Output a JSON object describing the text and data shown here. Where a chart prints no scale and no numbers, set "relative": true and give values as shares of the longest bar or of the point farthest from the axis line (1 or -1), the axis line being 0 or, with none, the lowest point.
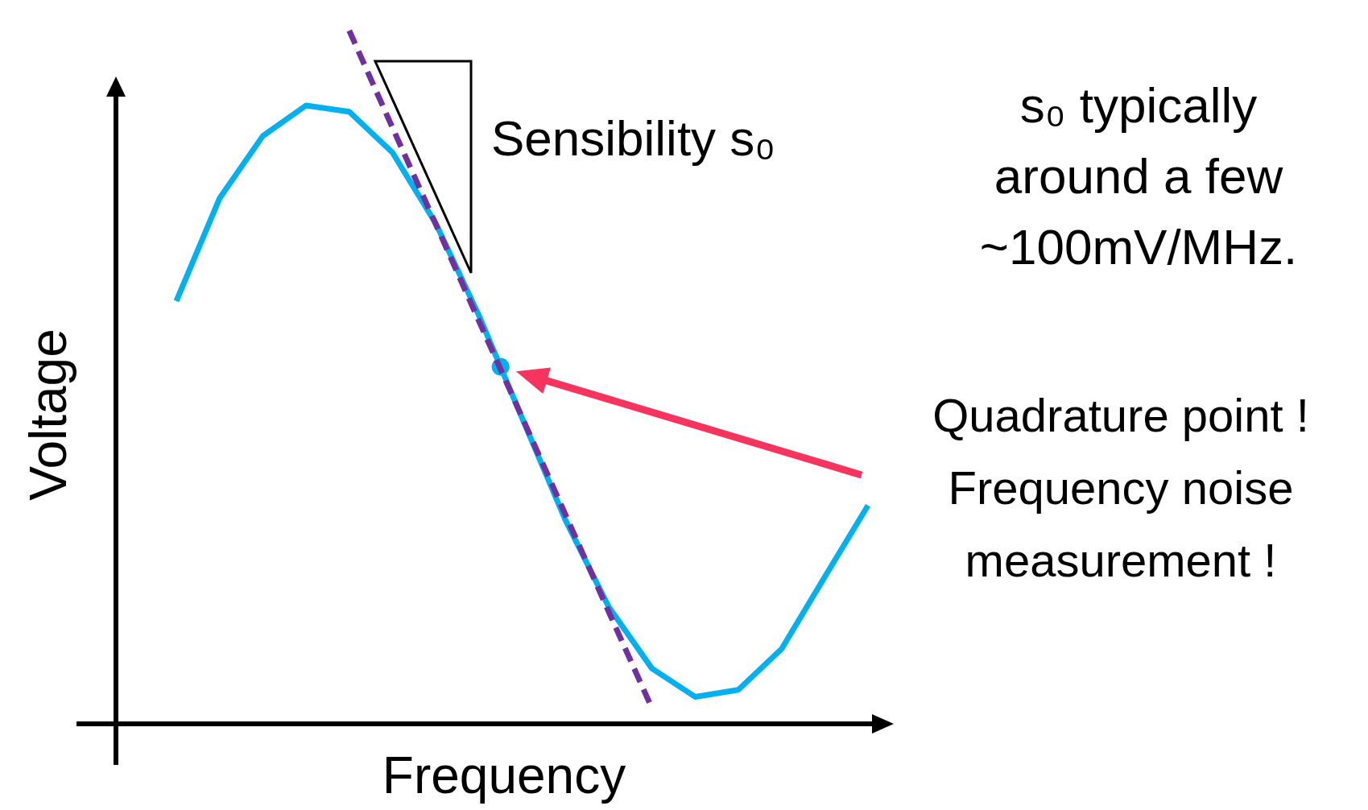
{
  "chart_data": {
    "type": "line",
    "relative": true,
    "xlabel": "Frequency",
    "ylabel": "Voltage",
    "categories": [
      null,
      null,
      null,
      null,
      null,
      null,
      null,
      null,
      null,
      null,
      null,
      null,
      null,
      null,
      null,
      null,
      null
    ],
    "series": [
      {
        "color": "#00b0f0",
        "line_style": "solid",
        "values": [
          0.61,
          0.758,
          0.848,
          0.892,
          0.883,
          0.824,
          0.722,
          0.589,
          0.441,
          0.294,
          0.169,
          0.08,
          0.039,
          0.049,
          0.108,
          0.212,
          0.315
        ]
      },
      {
        "color": "#7030a0",
        "line_style": "dashed",
        "values": [
          null,
          null,
          null,
          null,
          1,
          0.86,
          0.721,
          0.581,
          0.442,
          0.302,
          0.162,
          0.023,
          null,
          null,
          null,
          null,
          null
        ]
      }
    ],
    "annotations": [
      "Sensibility s₀",
      "s₀ typically\naround a few\n~100mV/MHz.",
      "Quadrature point !\nFrequency noise\nmeasurement !"
    ],
    "marker": "none"
  }
}
